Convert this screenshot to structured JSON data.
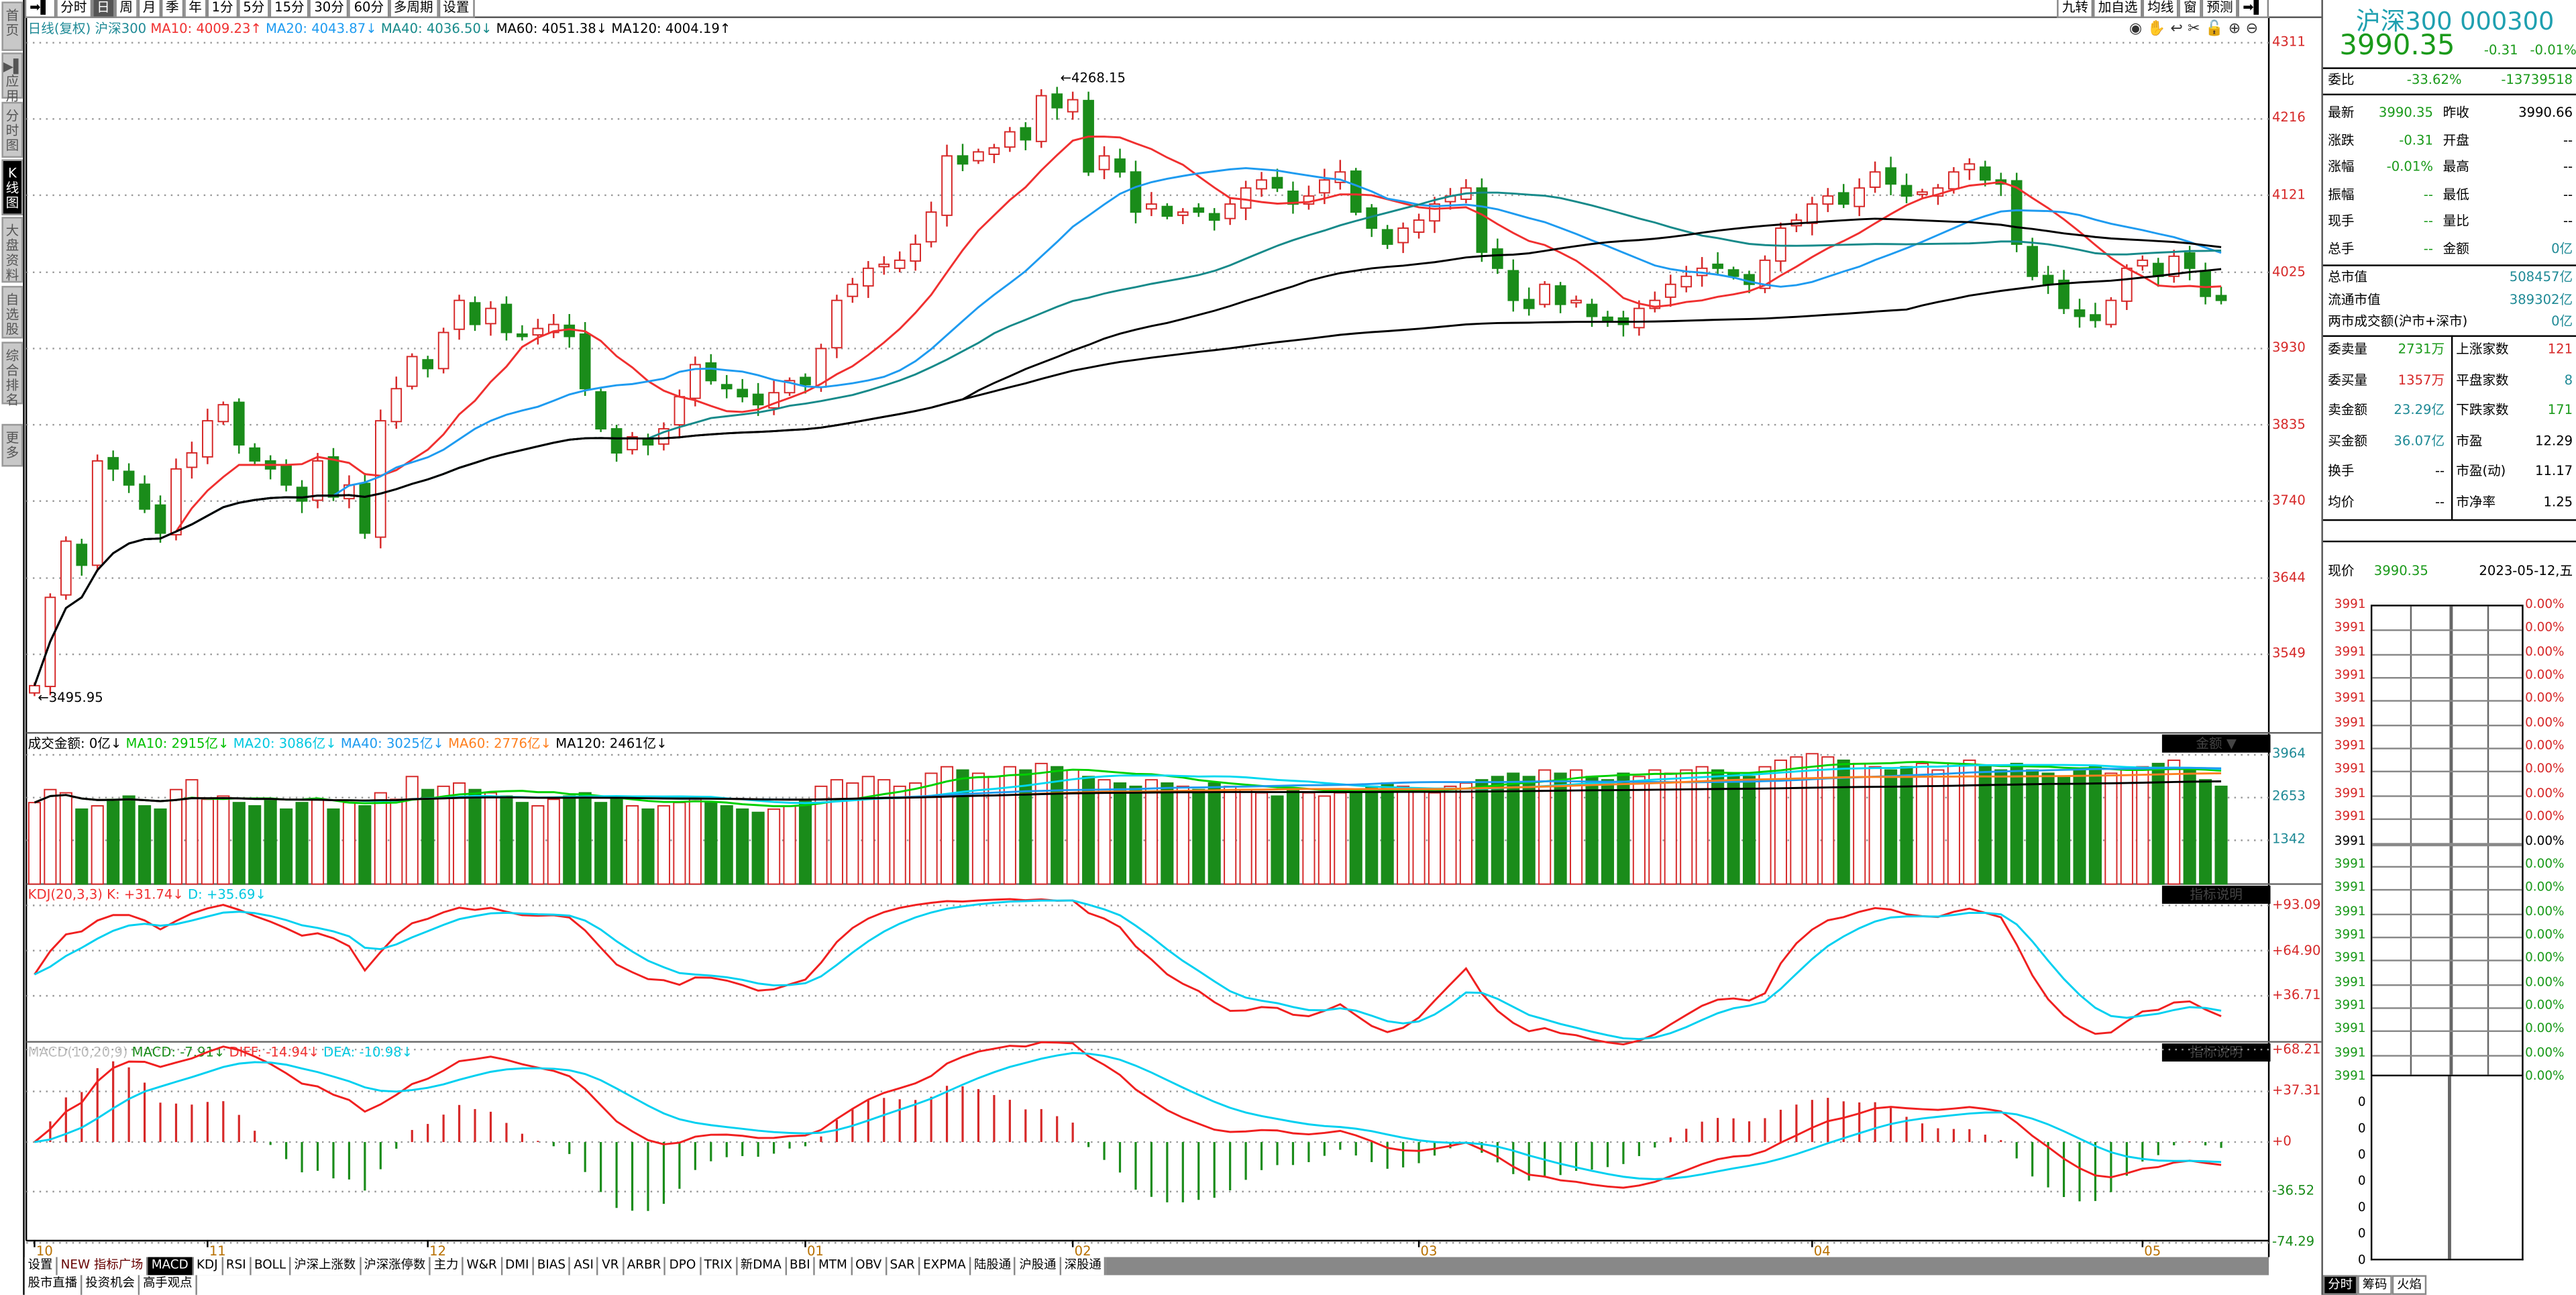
{
  "sidebar": [
    "首页",
    "▶▌应用",
    "分时图",
    "K线图",
    "大盘资料",
    "自选股",
    "综合排名",
    "更多"
  ],
  "toolbar": {
    "periods": [
      "分时",
      "日",
      "周",
      "月",
      "季",
      "年",
      "1分",
      "5分",
      "15分",
      "30分",
      "60分",
      "多周期",
      "设置"
    ],
    "active": "日",
    "right": [
      "九转",
      "加自选",
      "均线",
      "窗",
      "预测"
    ]
  },
  "main_legend": {
    "period": "日线(复权)",
    "name": "沪深300",
    "ma10": "MA10: 4009.23↑",
    "ma20": "MA20: 4043.87↓",
    "ma40": "MA40: 4036.50↓",
    "ma60": "MA60: 4051.38↓",
    "ma120": "MA120: 4004.19↑"
  },
  "volume_legend": {
    "amount": "成交金额: 0亿↓",
    "ma10": "MA10: 2915亿↓",
    "ma20": "MA20: 3086亿↓",
    "ma40": "MA40: 3025亿↓",
    "ma60": "MA60: 2776亿↓",
    "ma120": "MA120: 2461亿↓",
    "selector": "金额 ▼"
  },
  "kdj_legend": {
    "title": "KDJ(20,3,3)",
    "k": "K: +31.74↓",
    "d": "D: +35.69↓",
    "help": "指标说明"
  },
  "macd_legend": {
    "title": "MACD(10,20,9)",
    "macd": "MACD: -7.91↓",
    "diff": "DIFF: -14.94↓",
    "dea": "DEA: -10.98↓",
    "help": "指标说明"
  },
  "colors": {
    "up": "#d62828",
    "down": "#1a8c1a",
    "ma10": "#f03030",
    "ma20": "#1e9bf0",
    "ma40": "#178a8a",
    "ma60": "#000000",
    "ma120": "#000000",
    "vma10": "#00d000",
    "vma20": "#00d8f0",
    "vma40": "#1e9bf0",
    "vma60": "#ff8020",
    "vma120": "#000000"
  },
  "chart_data": {
    "type": "candlestick",
    "title": "沪深300 日线(复权)",
    "price_ticks": [
      4311,
      4216,
      4121,
      4025,
      3930,
      3835,
      3740,
      3644,
      3549
    ],
    "volume_ticks": [
      3964,
      2653,
      1342
    ],
    "kdj_ticks": [
      "+93.09",
      "+64.90",
      "+36.71"
    ],
    "kdj_tick_values": [
      93.09,
      64.9,
      36.71
    ],
    "macd_ticks": [
      "+68.21",
      "+37.31",
      "+0",
      "-36.52",
      "-74.29"
    ],
    "macd_tick_values": [
      68.21,
      37.31,
      0,
      -36.52,
      -74.29
    ],
    "annotations": {
      "high": "4268.15",
      "low": "3495.95"
    },
    "months": [
      {
        "label": "10",
        "index": 0
      },
      {
        "label": "11",
        "index": 11
      },
      {
        "label": "12",
        "index": 25
      },
      {
        "label": "01",
        "index": 49
      },
      {
        "label": "02",
        "index": 66
      },
      {
        "label": "03",
        "index": 88
      },
      {
        "label": "04",
        "index": 113
      },
      {
        "label": "05",
        "index": 134
      }
    ],
    "close": [
      3510,
      3620,
      3690,
      3660,
      3790,
      3780,
      3760,
      3730,
      3700,
      3780,
      3800,
      3840,
      3860,
      3810,
      3790,
      3780,
      3760,
      3740,
      3790,
      3745,
      3760,
      3700,
      3840,
      3880,
      3920,
      3905,
      3950,
      3990,
      3960,
      3980,
      3950,
      3945,
      3955,
      3960,
      3945,
      3880,
      3830,
      3800,
      3820,
      3810,
      3830,
      3870,
      3910,
      3890,
      3880,
      3870,
      3860,
      3875,
      3890,
      3885,
      3930,
      3990,
      4010,
      4030,
      4035,
      4040,
      4060,
      4100,
      4170,
      4160,
      4175,
      4180,
      4200,
      4190,
      4245,
      4230,
      4240,
      4150,
      4170,
      4150,
      4100,
      4110,
      4095,
      4100,
      4100,
      4090,
      4110,
      4130,
      4140,
      4130,
      4110,
      4120,
      4140,
      4150,
      4100,
      4080,
      4060,
      4080,
      4090,
      4110,
      4120,
      4130,
      4050,
      4030,
      3990,
      3980,
      4010,
      3985,
      3990,
      3970,
      3965,
      3960,
      3980,
      3990,
      4010,
      4020,
      4030,
      4030,
      4020,
      4010,
      4040,
      4080,
      4090,
      4110,
      4120,
      4110,
      4130,
      4150,
      4135,
      4120,
      4125,
      4130,
      4150,
      4160,
      4140,
      4135,
      4060,
      4020,
      4010,
      3980,
      3970,
      3965,
      3990,
      4030,
      4040,
      4020,
      4045,
      4030,
      3995,
      3990
    ],
    "volume": [
      2500,
      2900,
      2800,
      2300,
      2400,
      2600,
      2700,
      2400,
      2300,
      2900,
      3200,
      2600,
      2700,
      2500,
      2400,
      2600,
      2300,
      2500,
      2600,
      2300,
      2500,
      2400,
      2800,
      2600,
      3300,
      2900,
      3000,
      3100,
      2900,
      2800,
      2700,
      2500,
      2400,
      2600,
      2700,
      2800,
      2500,
      2600,
      2400,
      2300,
      2400,
      2500,
      2600,
      2500,
      2400,
      2300,
      2200,
      2300,
      2400,
      2600,
      3000,
      3200,
      3100,
      3300,
      3200,
      3000,
      3100,
      3400,
      3600,
      3500,
      3400,
      3300,
      3600,
      3500,
      3700,
      3600,
      3500,
      3300,
      3200,
      3100,
      3000,
      3200,
      3100,
      3000,
      2900,
      3100,
      3000,
      2900,
      2800,
      2700,
      2900,
      2800,
      2700,
      2800,
      2900,
      3000,
      3100,
      3000,
      2900,
      2800,
      3000,
      3100,
      3200,
      3300,
      3400,
      3300,
      3500,
      3400,
      3500,
      3300,
      3200,
      3400,
      3300,
      3500,
      3400,
      3500,
      3600,
      3500,
      3400,
      3300,
      3600,
      3800,
      3900,
      4000,
      3900,
      3800,
      3700,
      3600,
      3500,
      3600,
      3700,
      3500,
      3700,
      3800,
      3600,
      3500,
      3700,
      3500,
      3400,
      3300,
      3500,
      3600,
      3400,
      3500,
      3600,
      3700,
      3800,
      3500,
      3200,
      3000
    ]
  },
  "quote": {
    "title": "沪深300 000300",
    "price": "3990.35",
    "change": "-0.31",
    "pct": "-0.01%",
    "weibi": {
      "label": "委比",
      "v1": "-33.62%",
      "v2": "-13739518"
    },
    "rows": [
      [
        "最新",
        "3990.35",
        "昨收",
        "3990.66"
      ],
      [
        "涨跌",
        "-0.31",
        "开盘",
        "--"
      ],
      [
        "涨幅",
        "-0.01%",
        "最高",
        "--"
      ],
      [
        "振幅",
        "--",
        "最低",
        "--"
      ],
      [
        "现手",
        "--",
        "量比",
        "--"
      ],
      [
        "总手",
        "--",
        "金额",
        "0亿"
      ]
    ],
    "mkt": [
      [
        "总市值",
        "508457亿"
      ],
      [
        "流通市值",
        "389302亿"
      ],
      [
        "两市成交额(沪市+深市)",
        "0亿"
      ]
    ],
    "rows2": [
      [
        "委卖量",
        "2731万",
        "上涨家数",
        "121"
      ],
      [
        "委买量",
        "1357万",
        "平盘家数",
        "8"
      ],
      [
        "卖金额",
        "23.29亿",
        "下跌家数",
        "171"
      ],
      [
        "买金额",
        "36.07亿",
        "市盈",
        "12.29"
      ],
      [
        "换手",
        "--",
        "市盈(动)",
        "11.17"
      ],
      [
        "均价",
        "--",
        "市净率",
        "1.25"
      ]
    ],
    "now": {
      "label": "现价",
      "price": "3990.35",
      "date": "2023-05-12,五"
    },
    "mini_left": [
      "3991",
      "3991",
      "3991",
      "3991",
      "3991",
      "3991",
      "3991",
      "3991",
      "3991",
      "3991",
      "3991",
      "3991",
      "3991",
      "3991",
      "3991",
      "3991",
      "3991",
      "3991",
      "3991",
      "3991",
      "3991",
      "0",
      "0",
      "0",
      "0",
      "0",
      "0",
      "0"
    ],
    "mini_right": [
      "0.00%",
      "0.00%",
      "0.00%",
      "0.00%",
      "0.00%",
      "0.00%",
      "0.00%",
      "0.00%",
      "0.00%",
      "0.00%",
      "0.00%",
      "0.00%",
      "0.00%",
      "0.00%",
      "0.00%",
      "0.00%",
      "0.00%",
      "0.00%",
      "0.00%",
      "0.00%",
      "0.00%"
    ],
    "bottom_tabs": [
      "分时",
      "筹码",
      "火焰"
    ]
  },
  "indicator_tabs": [
    "设置",
    "NEW 指标广场",
    "MACD",
    "KDJ",
    "RSI",
    "BOLL",
    "沪深上涨数",
    "沪深涨停数",
    "主力",
    "W&R",
    "DMI",
    "BIAS",
    "ASI",
    "VR",
    "ARBR",
    "DPO",
    "TRIX",
    "新DMA",
    "BBI",
    "MTM",
    "OBV",
    "SAR",
    "EXPMA",
    "陆股通",
    "沪股通",
    "深股通"
  ],
  "active_indicator": "MACD",
  "news_tabs": [
    "股市直播",
    "投资机会",
    "高手观点"
  ]
}
